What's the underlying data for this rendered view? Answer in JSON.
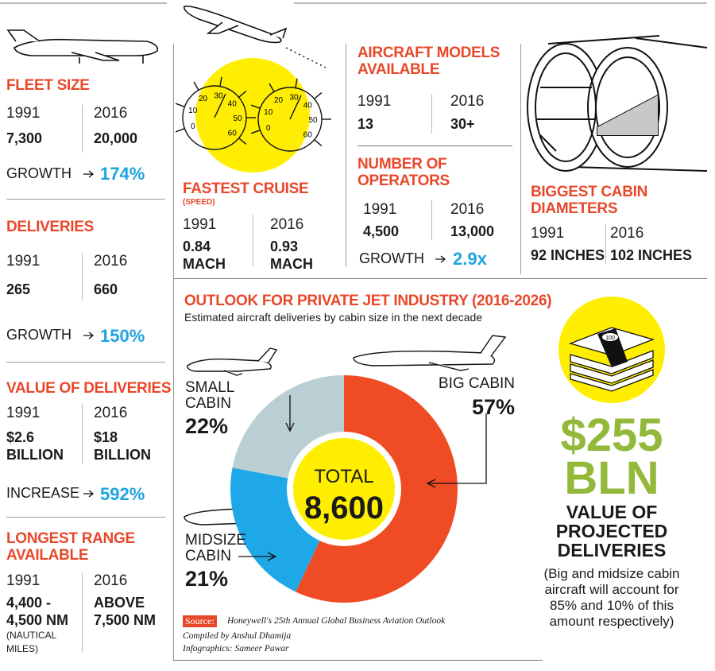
{
  "fleet_size": {
    "title": "FLEET SIZE",
    "year_1": "1991",
    "value_1": "7,300",
    "year_2": "2016",
    "value_2": "20,000",
    "growth_label": "GROWTH",
    "growth": "174%"
  },
  "deliveries": {
    "title": "DELIVERIES",
    "year_1": "1991",
    "value_1": "265",
    "year_2": "2016",
    "value_2": "660",
    "growth_label": "GROWTH",
    "growth": "150%"
  },
  "value_of_deliveries": {
    "title": "VALUE OF DELIVERIES",
    "year_1": "1991",
    "value_1": [
      "$2.6",
      "BILLION"
    ],
    "year_2": "2016",
    "value_2": [
      "$18",
      "BILLION"
    ],
    "increase_label": "INCREASE",
    "increase": "592%"
  },
  "longest_range": {
    "title": [
      "LONGEST RANGE",
      "AVAILABLE"
    ],
    "year_1": "1991",
    "value_1": [
      "4,400 -",
      "4,500 NM"
    ],
    "note": [
      "(NAUTICAL",
      "MILES)"
    ],
    "year_2": "2016",
    "value_2": [
      "ABOVE",
      "7,500 NM"
    ]
  },
  "fastest_cruise": {
    "title": "FASTEST CRUISE",
    "subtitle": "(SPEED)",
    "year_1": "1991",
    "value_1": [
      "0.84",
      "MACH"
    ],
    "year_2": "2016",
    "value_2": [
      "0.93",
      "MACH"
    ],
    "gauge_ticks": [
      "0",
      "10",
      "20",
      "30",
      "40",
      "50",
      "60"
    ]
  },
  "aircraft_models": {
    "title": [
      "AIRCRAFT MODELS",
      "AVAILABLE"
    ],
    "year_1": "1991",
    "value_1": "13",
    "year_2": "2016",
    "value_2": "30+"
  },
  "operators": {
    "title": [
      "NUMBER OF",
      "OPERATORS"
    ],
    "year_1": "1991",
    "value_1": "4,500",
    "year_2": "2016",
    "value_2": "13,000",
    "growth_label": "GROWTH",
    "growth": "2.9x"
  },
  "cabin_diameters": {
    "title": [
      "BIGGEST CABIN",
      "DIAMETERS"
    ],
    "year_1": "1991",
    "value_1": "92 INCHES",
    "year_2": "2016",
    "value_2": "102 INCHES"
  },
  "outlook": {
    "title": "OUTLOOK FOR PRIVATE JET INDUSTRY (2016-2026)",
    "subtitle": "Estimated aircraft deliveries by cabin size in the next decade",
    "chart_data": {
      "type": "donut",
      "categories": [
        "BIG CABIN",
        "MIDSIZE CABIN",
        "SMALL CABIN"
      ],
      "values": [
        57,
        21,
        22
      ],
      "value_labels": [
        "57%",
        "21%",
        "22%"
      ],
      "colors": [
        "#ef4b24",
        "#1fa8e8",
        "#b9cfd3"
      ],
      "total_label": "TOTAL",
      "total": "8,600"
    }
  },
  "source": {
    "label": "Source:",
    "text": "Honeywell's 25th Annual Global Business Aviation Outlook",
    "compiled": "Compiled by Anshul Dhamija",
    "infographics": "Infographics: Sameer Pawar"
  },
  "projected": {
    "banknote": "100",
    "amount": "$255",
    "unit": "BLN",
    "label": "VALUE OF PROJECTED DELIVERIES",
    "note": "(Big and midsize cabin aircraft will account for 85% and 10% of this amount respectively)"
  }
}
